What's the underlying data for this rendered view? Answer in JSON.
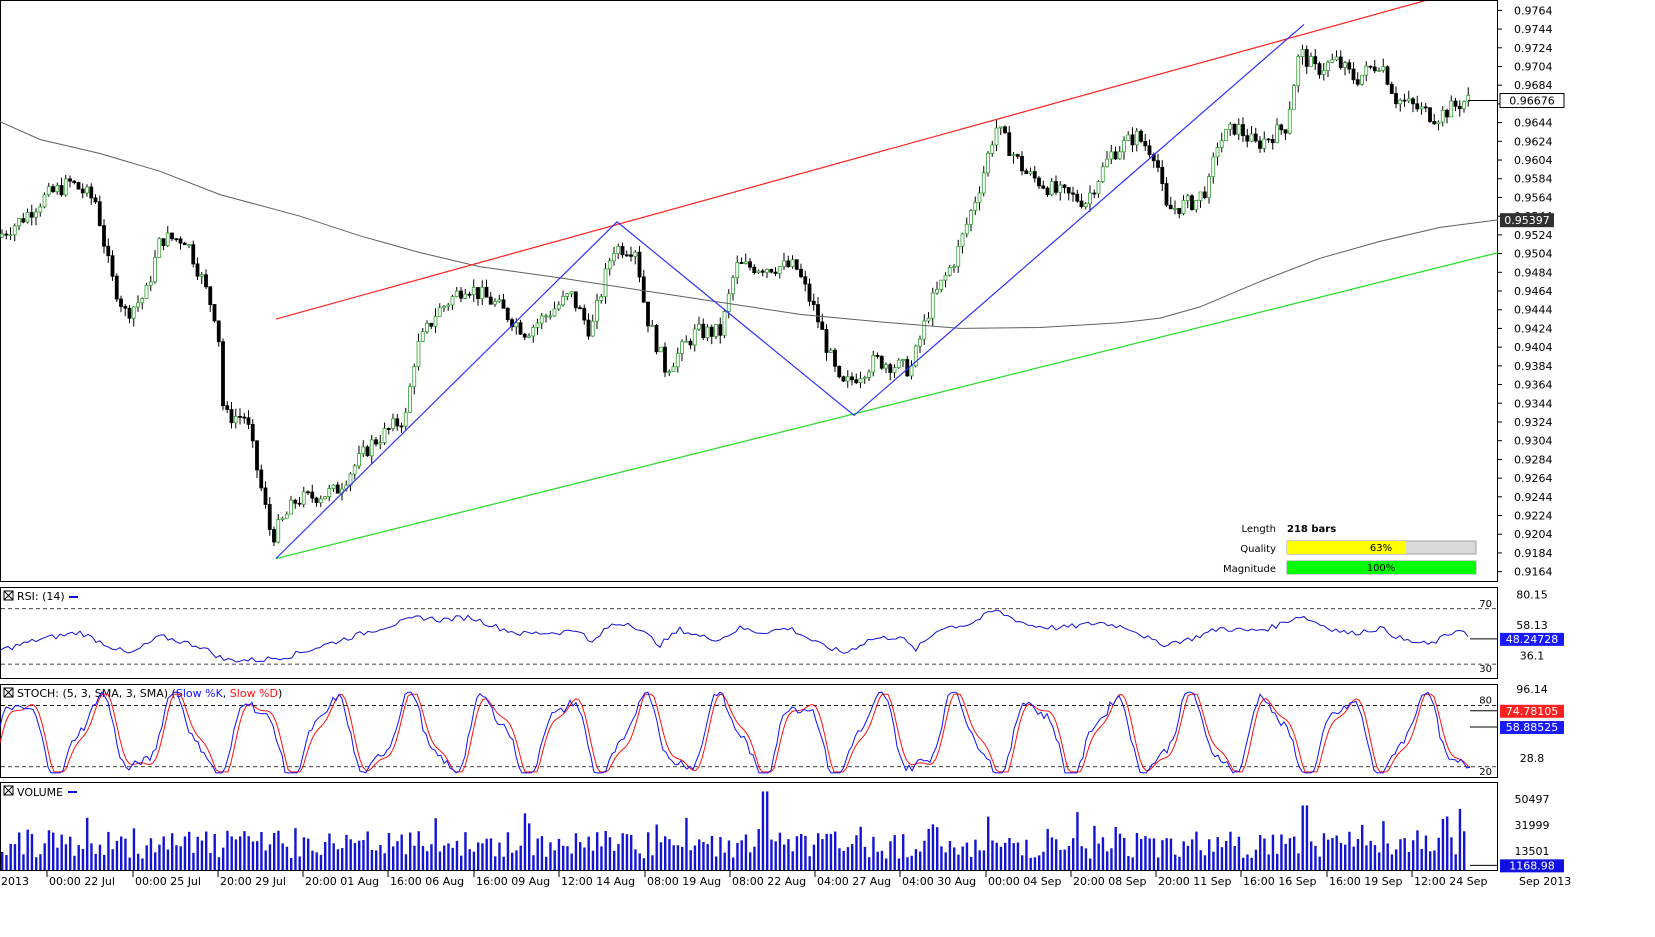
{
  "chart_data": {
    "type": "candlestick",
    "price_panel": {
      "ylim": [
        0.9154,
        0.9774
      ],
      "y_ticks": [
        "0.9164",
        "0.9184",
        "0.9204",
        "0.9224",
        "0.9244",
        "0.9264",
        "0.9284",
        "0.9304",
        "0.9324",
        "0.9344",
        "0.9364",
        "0.9384",
        "0.9404",
        "0.9424",
        "0.9444",
        "0.9464",
        "0.9484",
        "0.9504",
        "0.9524",
        "0.9544",
        "0.9564",
        "0.9584",
        "0.9604",
        "0.9624",
        "0.9644",
        "0.9664",
        "0.9684",
        "0.9704",
        "0.9724",
        "0.9744",
        "0.9764"
      ],
      "last_price_label": "0.96676",
      "last_price": 0.96676,
      "ma_label": "0.95397",
      "ma_value": 0.95397,
      "moving_average": [
        [
          0,
          0.9645
        ],
        [
          40,
          0.9626
        ],
        [
          100,
          0.9611
        ],
        [
          160,
          0.9592
        ],
        [
          220,
          0.9567
        ],
        [
          300,
          0.9544
        ],
        [
          360,
          0.9523
        ],
        [
          420,
          0.9505
        ],
        [
          480,
          0.949
        ],
        [
          560,
          0.9478
        ],
        [
          640,
          0.9465
        ],
        [
          720,
          0.9452
        ],
        [
          800,
          0.9439
        ],
        [
          880,
          0.9431
        ],
        [
          960,
          0.9424
        ],
        [
          1040,
          0.9425
        ],
        [
          1120,
          0.943
        ],
        [
          1160,
          0.9435
        ],
        [
          1200,
          0.9447
        ],
        [
          1260,
          0.9474
        ],
        [
          1320,
          0.9499
        ],
        [
          1380,
          0.9517
        ],
        [
          1440,
          0.9532
        ],
        [
          1498,
          0.954
        ]
      ],
      "channel_upper": [
        [
          276,
          0.9434
        ],
        [
          1498,
          0.9796
        ]
      ],
      "channel_lower": [
        [
          276,
          0.9178
        ],
        [
          1498,
          0.9505
        ]
      ],
      "zigzag": [
        [
          276,
          0.9178
        ],
        [
          617,
          0.9538
        ],
        [
          854,
          0.9331
        ],
        [
          1304,
          0.9749
        ]
      ],
      "candles_seed": 7
    },
    "pattern_info": {
      "length_label": "Length",
      "length_value": "218 bars",
      "quality_label": "Quality",
      "quality_value": "63%",
      "quality": 0.63,
      "magnitude_label": "Magnitude",
      "magnitude_value": "100%",
      "magnitude": 1.0
    },
    "rsi_panel": {
      "title": "RSI: (14)",
      "ylim": [
        20,
        85
      ],
      "levels": [
        70,
        30
      ],
      "level_labels": [
        "70",
        "30"
      ],
      "right_labels": [
        "80.15",
        "58.13",
        "36.1"
      ],
      "current_label": "48.24728",
      "current": 48.24728,
      "anchors": [
        [
          0,
          40
        ],
        [
          40,
          48
        ],
        [
          80,
          53
        ],
        [
          110,
          43
        ],
        [
          130,
          37
        ],
        [
          160,
          50
        ],
        [
          200,
          43
        ],
        [
          225,
          33
        ],
        [
          260,
          33
        ],
        [
          290,
          36
        ],
        [
          330,
          45
        ],
        [
          380,
          56
        ],
        [
          420,
          64
        ],
        [
          440,
          62
        ],
        [
          470,
          64
        ],
        [
          500,
          56
        ],
        [
          520,
          52
        ],
        [
          560,
          53
        ],
        [
          580,
          55
        ],
        [
          590,
          44
        ],
        [
          610,
          58
        ],
        [
          630,
          60
        ],
        [
          660,
          44
        ],
        [
          680,
          55
        ],
        [
          700,
          50
        ],
        [
          720,
          48
        ],
        [
          740,
          56
        ],
        [
          760,
          53
        ],
        [
          790,
          56
        ],
        [
          820,
          44
        ],
        [
          845,
          38
        ],
        [
          870,
          48
        ],
        [
          900,
          50
        ],
        [
          915,
          40
        ],
        [
          940,
          56
        ],
        [
          970,
          59
        ],
        [
          995,
          69
        ],
        [
          1010,
          64
        ],
        [
          1030,
          58
        ],
        [
          1060,
          56
        ],
        [
          1100,
          60
        ],
        [
          1130,
          56
        ],
        [
          1160,
          44
        ],
        [
          1190,
          48
        ],
        [
          1220,
          56
        ],
        [
          1250,
          54
        ],
        [
          1270,
          56
        ],
        [
          1300,
          65
        ],
        [
          1330,
          56
        ],
        [
          1350,
          52
        ],
        [
          1380,
          56
        ],
        [
          1405,
          47
        ],
        [
          1430,
          44
        ],
        [
          1460,
          56
        ],
        [
          1470,
          48
        ]
      ]
    },
    "stoch_panel": {
      "title": "STOCH: (5, 3, SMA, 3, SMA)",
      "legend_k": "Slow %K",
      "legend_d": "Slow %D",
      "ylim": [
        10,
        100
      ],
      "levels": [
        80,
        20
      ],
      "level_labels": [
        "80",
        "20"
      ],
      "right_labels": [
        "96.14",
        "28.8"
      ],
      "k_label": "74.78105",
      "d_label": "58.88525",
      "k_current": 74.78105,
      "d_current": 58.88525
    },
    "volume_panel": {
      "title": "VOLUME",
      "ylim": [
        0,
        62000
      ],
      "right_labels": [
        "50497",
        "31999",
        "13501"
      ],
      "right_values": [
        50497,
        31999,
        13501
      ],
      "current_label": "1168.98",
      "current": 1168.98
    },
    "x_tick_labels": [
      "2013",
      "00:00 22 Jul",
      "00:00 25 Jul",
      "20:00 29 Jul",
      "20:00 01 Aug",
      "16:00 06 Aug",
      "16:00 09 Aug",
      "12:00 14 Aug",
      "08:00 19 Aug",
      "08:00 22 Aug",
      "04:00 27 Aug",
      "04:00 30 Aug",
      "00:00 04 Sep",
      "20:00 08 Sep",
      "20:00 11 Sep",
      "16:00 16 Sep",
      "16:00 19 Sep",
      "12:00 24 Sep",
      "Sep 2013"
    ],
    "colors": {
      "bull": "#30a030",
      "bear": "#000000",
      "channel_upper": "#ff2020",
      "channel_lower": "#20e020",
      "zigzag": "#3030ff",
      "moving_average": "#606060",
      "rsi": "#1010d0",
      "stoch_k": "#1010ff",
      "stoch_d": "#ff1010",
      "volume": "#1414d4",
      "quality_fill": "#ffff00",
      "magnitude_fill": "#00ff00",
      "rsi_badge": "#1a1aff",
      "k_badge": "#ff2020",
      "d_badge": "#1a1aff",
      "volume_badge": "#1010e0"
    }
  }
}
